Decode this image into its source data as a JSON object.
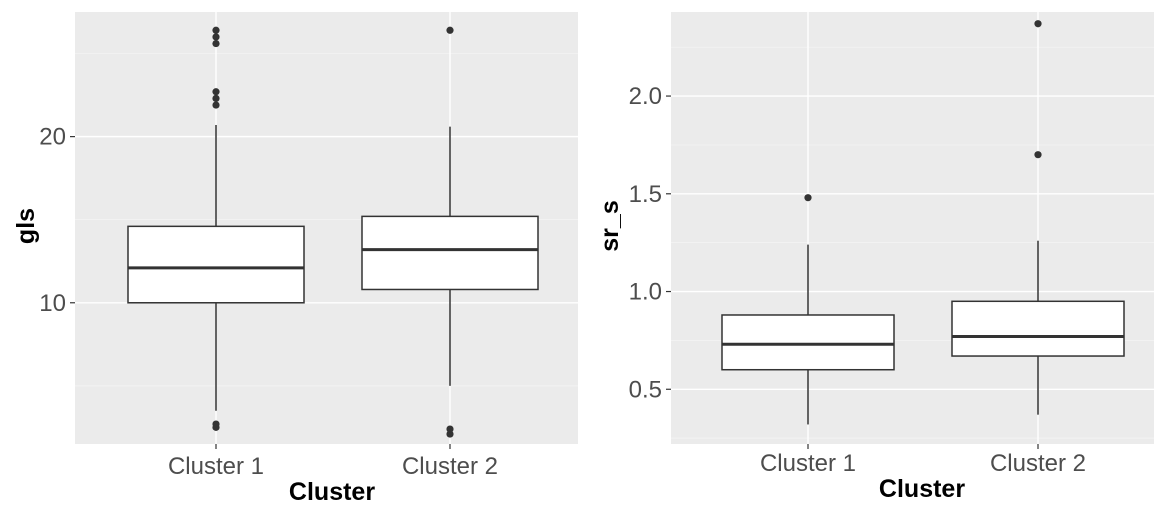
{
  "chart_data": [
    {
      "type": "boxplot",
      "xlabel": "Cluster",
      "ylabel": "gls",
      "categories": [
        "Cluster 1",
        "Cluster 2"
      ],
      "ylim": [
        1.5,
        27.5
      ],
      "yticks": [
        10,
        20
      ],
      "ytick_labels": [
        "10",
        "20"
      ],
      "grid": true,
      "boxes": [
        {
          "category": "Cluster 1",
          "whisker_low": 3.5,
          "q1": 10.0,
          "median": 12.1,
          "q3": 14.6,
          "whisker_high": 20.7,
          "outliers": [
            2.5,
            2.7,
            21.9,
            22.3,
            22.7,
            25.6,
            26.0,
            26.4
          ]
        },
        {
          "category": "Cluster 2",
          "whisker_low": 5.0,
          "q1": 10.8,
          "median": 13.2,
          "q3": 15.2,
          "whisker_high": 20.6,
          "outliers": [
            2.1,
            2.4,
            26.4
          ]
        }
      ]
    },
    {
      "type": "boxplot",
      "xlabel": "Cluster",
      "ylabel": "sr_s",
      "categories": [
        "Cluster 1",
        "Cluster 2"
      ],
      "ylim": [
        0.22,
        2.43
      ],
      "yticks": [
        0.5,
        1.0,
        1.5,
        2.0
      ],
      "ytick_labels": [
        "0.5",
        "1.0",
        "1.5",
        "2.0"
      ],
      "grid": true,
      "boxes": [
        {
          "category": "Cluster 1",
          "whisker_low": 0.32,
          "q1": 0.6,
          "median": 0.73,
          "q3": 0.88,
          "whisker_high": 1.24,
          "outliers": [
            1.48
          ]
        },
        {
          "category": "Cluster 2",
          "whisker_low": 0.37,
          "q1": 0.67,
          "median": 0.77,
          "q3": 0.95,
          "whisker_high": 1.26,
          "outliers": [
            1.7,
            2.37
          ]
        }
      ]
    }
  ]
}
